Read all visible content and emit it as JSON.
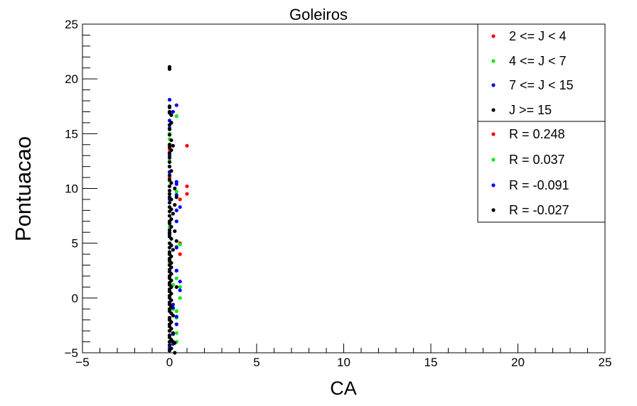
{
  "chart_data": {
    "type": "scatter",
    "title": "Goleiros",
    "xlabel": "CA",
    "ylabel": "Pontuacao",
    "xlim": [
      -5,
      25
    ],
    "ylim": [
      -5,
      25
    ],
    "x_ticks": [
      -5,
      0,
      5,
      10,
      15,
      20,
      25
    ],
    "y_ticks": [
      -5,
      0,
      5,
      10,
      15,
      20,
      25
    ],
    "grid": false,
    "legend_position": "top-right",
    "series": [
      {
        "name": "2 <= J < 4",
        "color": "#ff0000",
        "points": [
          [
            0,
            13.3
          ],
          [
            0,
            13.6
          ],
          [
            1,
            13.9
          ],
          [
            1,
            10.2
          ],
          [
            1,
            9.5
          ],
          [
            0.6,
            9.0
          ],
          [
            0.6,
            5.0
          ],
          [
            0.6,
            4.0
          ],
          [
            0,
            11.0
          ],
          [
            0,
            -3.0
          ],
          [
            0,
            0.2
          ],
          [
            0,
            3.5
          ]
        ]
      },
      {
        "name": "4 <= J < 7",
        "color": "#00ee00",
        "points": [
          [
            0,
            15.0
          ],
          [
            0.4,
            16.6
          ],
          [
            0,
            14.5
          ],
          [
            0,
            11.5
          ],
          [
            0,
            10.7
          ],
          [
            0.4,
            9.7
          ],
          [
            0.4,
            8.0
          ],
          [
            0.6,
            4.9
          ],
          [
            0.4,
            4.7
          ],
          [
            0.4,
            2.5
          ],
          [
            0.4,
            1.8
          ],
          [
            0.6,
            1.0
          ],
          [
            0.6,
            0.0
          ],
          [
            0.4,
            -1.2
          ],
          [
            0.4,
            -1.8
          ],
          [
            0.4,
            -3.2
          ],
          [
            0.4,
            -4.0
          ],
          [
            0.2,
            -1.0
          ],
          [
            0,
            12.5
          ],
          [
            0,
            6.5
          ],
          [
            0,
            3.2
          ],
          [
            0,
            -4.5
          ],
          [
            0.2,
            1.2
          ]
        ]
      },
      {
        "name": "7 <= J < 15",
        "color": "#0000ff",
        "points": [
          [
            0,
            18.1
          ],
          [
            0.4,
            17.6
          ],
          [
            0,
            16.2
          ],
          [
            0,
            15.5
          ],
          [
            0,
            14.0
          ],
          [
            0,
            12.0
          ],
          [
            0,
            11.5
          ],
          [
            0.4,
            10.6
          ],
          [
            0.4,
            10.4
          ],
          [
            0.4,
            9.4
          ],
          [
            0.4,
            8.0
          ],
          [
            0.6,
            8.3
          ],
          [
            0.4,
            7.0
          ],
          [
            0,
            6.0
          ],
          [
            0,
            5.8
          ],
          [
            0.4,
            4.6
          ],
          [
            0,
            3.0
          ],
          [
            0.4,
            2.5
          ],
          [
            0.6,
            1.5
          ],
          [
            0.6,
            0.7
          ],
          [
            0.2,
            -0.6
          ],
          [
            0.2,
            -0.9
          ],
          [
            0.4,
            -1.7
          ],
          [
            0.4,
            -2.4
          ],
          [
            0.2,
            -3.3
          ],
          [
            0.2,
            -4.2
          ],
          [
            0,
            -4.6
          ],
          [
            0,
            -2.0
          ],
          [
            0,
            2.0
          ],
          [
            0,
            9.0
          ],
          [
            0.2,
            17.0
          ],
          [
            0,
            13.0
          ],
          [
            0,
            4.0
          ]
        ]
      },
      {
        "name": "J >= 15",
        "color": "#000000",
        "points": [
          [
            0,
            21.1
          ],
          [
            0,
            20.9
          ],
          [
            0,
            17.5
          ],
          [
            0,
            17.4
          ],
          [
            0,
            17.0
          ],
          [
            0.1,
            16.7
          ],
          [
            0,
            16.9
          ],
          [
            0,
            15.8
          ],
          [
            0,
            14.9
          ],
          [
            0.1,
            14.4
          ],
          [
            0,
            14.0
          ],
          [
            0,
            13.8
          ],
          [
            0.1,
            13.5
          ],
          [
            0,
            13.2
          ],
          [
            0,
            12.8
          ],
          [
            0,
            12.4
          ],
          [
            0,
            12.0
          ],
          [
            0.1,
            11.6
          ],
          [
            0,
            11.2
          ],
          [
            0,
            10.8
          ],
          [
            0.1,
            10.5
          ],
          [
            0,
            10.2
          ],
          [
            0.3,
            10.0
          ],
          [
            0,
            9.8
          ],
          [
            0,
            9.5
          ],
          [
            0,
            9.2
          ],
          [
            0.1,
            9.0
          ],
          [
            0,
            8.7
          ],
          [
            0.3,
            8.5
          ],
          [
            0,
            8.3
          ],
          [
            0.1,
            8.1
          ],
          [
            0,
            7.9
          ],
          [
            0.2,
            7.7
          ],
          [
            0,
            7.5
          ],
          [
            0.1,
            7.2
          ],
          [
            0,
            7.0
          ],
          [
            0,
            6.8
          ],
          [
            0.1,
            6.5
          ],
          [
            0,
            6.2
          ],
          [
            0.3,
            6.1
          ],
          [
            0,
            5.9
          ],
          [
            0,
            5.6
          ],
          [
            0.1,
            5.4
          ],
          [
            0.4,
            5.2
          ],
          [
            0,
            5.0
          ],
          [
            0.1,
            4.8
          ],
          [
            0,
            4.6
          ],
          [
            0.2,
            4.4
          ],
          [
            0,
            4.2
          ],
          [
            0,
            4.0
          ],
          [
            0.1,
            3.8
          ],
          [
            0,
            3.6
          ],
          [
            0,
            3.4
          ],
          [
            0.1,
            3.2
          ],
          [
            0,
            3.0
          ],
          [
            0.1,
            2.8
          ],
          [
            0,
            2.6
          ],
          [
            0,
            2.4
          ],
          [
            0.1,
            2.2
          ],
          [
            0,
            2.0
          ],
          [
            0,
            1.8
          ],
          [
            0.1,
            1.6
          ],
          [
            0,
            1.4
          ],
          [
            0,
            1.2
          ],
          [
            0.1,
            1.0
          ],
          [
            0.4,
            1.0
          ],
          [
            0,
            0.8
          ],
          [
            0,
            0.6
          ],
          [
            0.1,
            0.4
          ],
          [
            0,
            0.2
          ],
          [
            0,
            0.0
          ],
          [
            0.1,
            -0.2
          ],
          [
            0,
            -0.4
          ],
          [
            0,
            -0.6
          ],
          [
            0.1,
            -0.8
          ],
          [
            0,
            -1.0
          ],
          [
            0,
            -1.2
          ],
          [
            0.1,
            -1.4
          ],
          [
            0.2,
            -1.6
          ],
          [
            0,
            -1.8
          ],
          [
            0,
            -2.0
          ],
          [
            0.1,
            -2.2
          ],
          [
            0,
            -2.4
          ],
          [
            0,
            -2.6
          ],
          [
            0.1,
            -2.8
          ],
          [
            0,
            -3.0
          ],
          [
            0.2,
            -3.2
          ],
          [
            0,
            -3.4
          ],
          [
            0,
            -3.6
          ],
          [
            0.1,
            -3.8
          ],
          [
            0,
            -4.0
          ],
          [
            0.2,
            -4.0
          ],
          [
            0.3,
            -4.1
          ],
          [
            0,
            -4.3
          ],
          [
            0.1,
            -4.6
          ],
          [
            0.3,
            -5.0
          ],
          [
            0,
            -4.8
          ],
          [
            0.1,
            16.0
          ],
          [
            0,
            15.4
          ],
          [
            0.2,
            13.9
          ],
          [
            0.4,
            9.2
          ]
        ]
      }
    ],
    "correlation_legend": [
      {
        "label": "R = 0.248",
        "color": "#ff0000"
      },
      {
        "label": "R = 0.037",
        "color": "#00ee00"
      },
      {
        "label": "R = -0.091",
        "color": "#0000ff"
      },
      {
        "label": "R = -0.027",
        "color": "#000000"
      }
    ]
  }
}
